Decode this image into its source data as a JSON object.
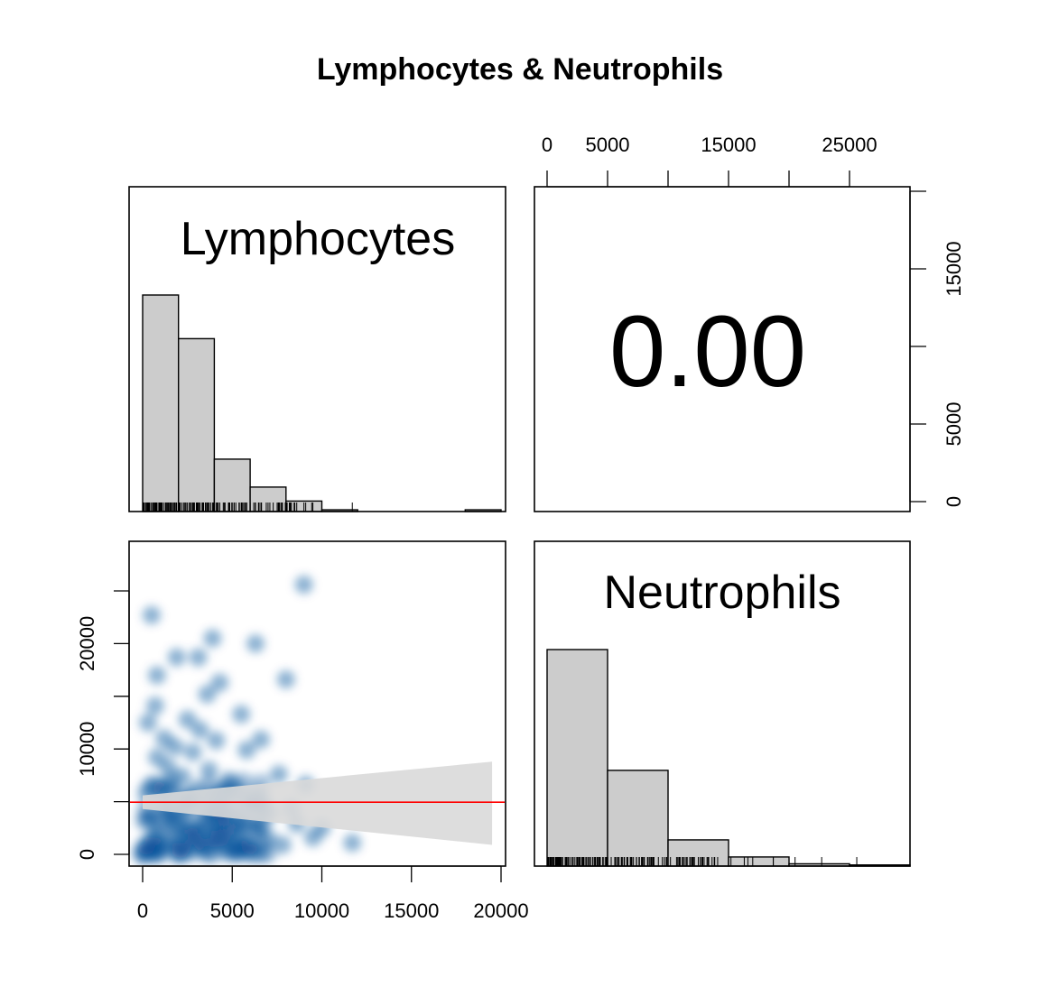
{
  "chart_data": {
    "type": "scatter",
    "title": "Lymphocytes & Neutrophils",
    "variables": [
      "Lymphocytes",
      "Neutrophils"
    ],
    "correlation": "0.00",
    "top_axis": {
      "ticks": [
        0,
        5000,
        10000,
        15000,
        20000,
        25000
      ],
      "labels": [
        "0",
        "5000",
        "15000",
        "25000"
      ],
      "label_values": [
        0,
        5000,
        15000,
        25000
      ]
    },
    "right_axis": {
      "ticks": [
        0,
        5000,
        10000,
        15000,
        20000
      ],
      "labels": [
        "0",
        "5000",
        "15000"
      ],
      "label_values": [
        0,
        5000,
        15000
      ]
    },
    "left_axis": {
      "ticks": [
        0,
        5000,
        10000,
        15000,
        20000,
        25000
      ],
      "labels": [
        "0",
        "10000",
        "20000"
      ],
      "label_values": [
        0,
        10000,
        20000
      ]
    },
    "bottom_axis": {
      "ticks": [
        0,
        5000,
        10000,
        15000,
        20000
      ],
      "labels": [
        "0",
        "5000",
        "10000",
        "15000",
        "20000"
      ],
      "label_values": [
        0,
        5000,
        10000,
        15000,
        20000
      ]
    },
    "lymphocytes_histogram": {
      "bin_edges": [
        0,
        2000,
        4000,
        6000,
        8000,
        10000,
        12000,
        14000,
        16000,
        18000,
        20000
      ],
      "counts": [
        124,
        99,
        30,
        14,
        6,
        1,
        0,
        0,
        0,
        1
      ]
    },
    "neutrophils_histogram": {
      "bin_edges": [
        0,
        5000,
        10000,
        15000,
        20000,
        25000,
        30000
      ],
      "counts": [
        190,
        84,
        23,
        8,
        2,
        1
      ]
    },
    "scatter_points": [
      {
        "x": 500,
        "y": 22700
      },
      {
        "x": 9000,
        "y": 25600
      },
      {
        "x": 800,
        "y": 17000
      },
      {
        "x": 1900,
        "y": 18700
      },
      {
        "x": 3100,
        "y": 18700
      },
      {
        "x": 3900,
        "y": 20500
      },
      {
        "x": 6300,
        "y": 20000
      },
      {
        "x": 8000,
        "y": 16600
      },
      {
        "x": 3600,
        "y": 15200
      },
      {
        "x": 4300,
        "y": 16300
      },
      {
        "x": 5500,
        "y": 13300
      },
      {
        "x": 700,
        "y": 14100
      },
      {
        "x": 300,
        "y": 12500
      },
      {
        "x": 2500,
        "y": 12800
      },
      {
        "x": 3200,
        "y": 11800
      },
      {
        "x": 6600,
        "y": 10900
      },
      {
        "x": 5800,
        "y": 9900
      },
      {
        "x": 1200,
        "y": 11000
      },
      {
        "x": 1800,
        "y": 10200
      },
      {
        "x": 2800,
        "y": 9700
      },
      {
        "x": 4100,
        "y": 10800
      },
      {
        "x": 7600,
        "y": 7600
      },
      {
        "x": 9100,
        "y": 6600
      },
      {
        "x": 3700,
        "y": 8000
      },
      {
        "x": 4800,
        "y": 7000
      },
      {
        "x": 5400,
        "y": 5900
      },
      {
        "x": 1400,
        "y": 8300
      },
      {
        "x": 2200,
        "y": 7400
      },
      {
        "x": 600,
        "y": 6600
      },
      {
        "x": 3000,
        "y": 6200
      },
      {
        "x": 1000,
        "y": 5000
      },
      {
        "x": 2400,
        "y": 4600
      },
      {
        "x": 4200,
        "y": 4300
      },
      {
        "x": 6200,
        "y": 4800
      },
      {
        "x": 7100,
        "y": 3900
      },
      {
        "x": 8300,
        "y": 4400
      },
      {
        "x": 10000,
        "y": 2500
      },
      {
        "x": 11700,
        "y": 1100
      },
      {
        "x": 9500,
        "y": 1600
      },
      {
        "x": 8600,
        "y": 2900
      },
      {
        "x": 7000,
        "y": 1500
      },
      {
        "x": 6000,
        "y": 800
      },
      {
        "x": 5000,
        "y": 2400
      },
      {
        "x": 4000,
        "y": 1500
      },
      {
        "x": 3400,
        "y": 3000
      },
      {
        "x": 2600,
        "y": 1800
      },
      {
        "x": 1700,
        "y": 3000
      },
      {
        "x": 900,
        "y": 2100
      },
      {
        "x": 400,
        "y": 3600
      },
      {
        "x": 1500,
        "y": 1200
      },
      {
        "x": 200,
        "y": 800
      },
      {
        "x": 2100,
        "y": 500
      },
      {
        "x": 3500,
        "y": 700
      },
      {
        "x": 4600,
        "y": 3500
      },
      {
        "x": 5600,
        "y": 3200
      },
      {
        "x": 6500,
        "y": 2600
      },
      {
        "x": 1300,
        "y": 4200
      },
      {
        "x": 2700,
        "y": 5300
      },
      {
        "x": 3800,
        "y": 5600
      },
      {
        "x": 800,
        "y": 9200
      },
      {
        "x": 200,
        "y": 5800
      },
      {
        "x": 1100,
        "y": 6400
      },
      {
        "x": 2000,
        "y": 2600
      },
      {
        "x": 3000,
        "y": 1000
      },
      {
        "x": 600,
        "y": 1600
      },
      {
        "x": 4500,
        "y": 900
      },
      {
        "x": 5200,
        "y": 1700
      },
      {
        "x": 7800,
        "y": 900
      },
      {
        "x": 1600,
        "y": 7000
      },
      {
        "x": 2300,
        "y": 3900
      }
    ],
    "regression_line": {
      "intercept": 4950,
      "slope": 0,
      "x_range": [
        0,
        20500
      ]
    },
    "confidence_band": {
      "x_range": [
        0,
        19500
      ],
      "lower": [
        4300,
        900
      ],
      "upper": [
        5600,
        8800
      ]
    },
    "colors": {
      "histogram_fill": "#cccccc",
      "density": "#08519c",
      "regression": "#ff0000",
      "band": "#d9d9d9"
    }
  }
}
